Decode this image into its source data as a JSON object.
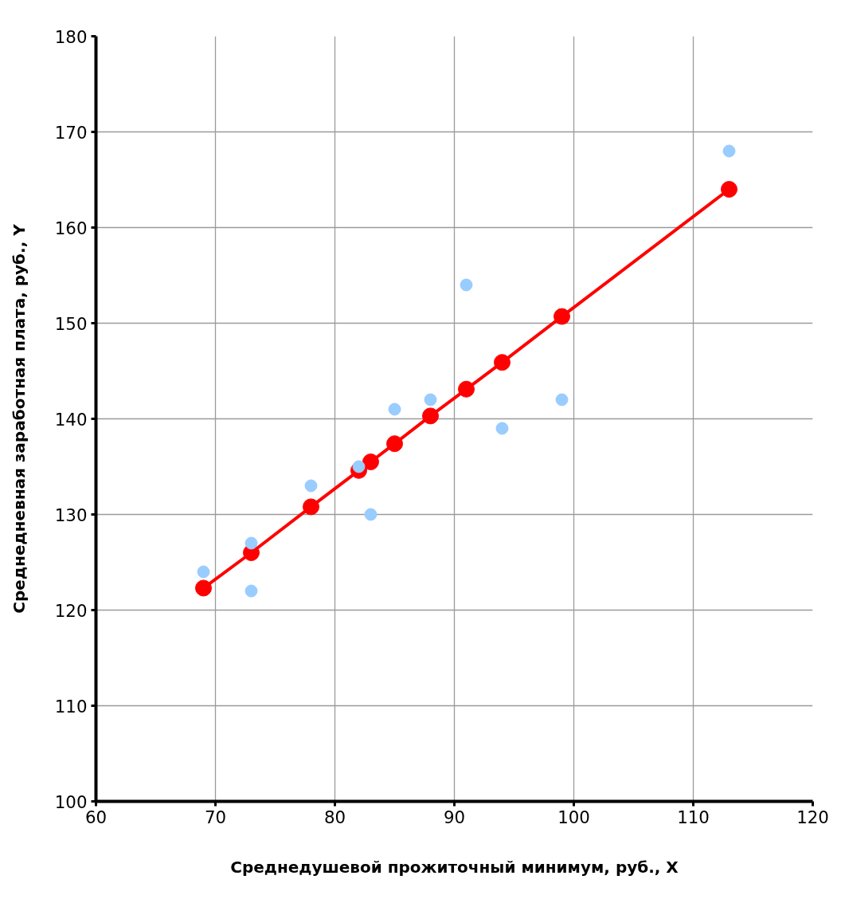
{
  "chart_data": {
    "type": "scatter",
    "xlabel": "Среднедушевой прожиточный минимум, руб., X",
    "ylabel": "Среднедневная заработная плата, руб., Y",
    "xlim": [
      60,
      120
    ],
    "ylim": [
      100,
      180
    ],
    "xticks": [
      60,
      70,
      80,
      90,
      100,
      110,
      120
    ],
    "yticks": [
      100,
      110,
      120,
      130,
      140,
      150,
      160,
      170,
      180
    ],
    "grid": true,
    "marker": "circle",
    "series": [
      {
        "color": "#99ccff",
        "x": [
          69,
          73,
          73,
          78,
          82,
          83,
          85,
          88,
          91,
          94,
          99,
          113
        ],
        "values": [
          124,
          127,
          122,
          133,
          135,
          130,
          141,
          142,
          154,
          139,
          142,
          168
        ]
      },
      {
        "type": "line",
        "color": "#ff0000",
        "x": [
          69,
          73,
          78,
          82,
          83,
          85,
          88,
          91,
          94,
          99,
          113
        ],
        "values": [
          122.3,
          126.0,
          130.8,
          134.6,
          135.5,
          137.4,
          140.3,
          143.1,
          145.9,
          150.7,
          164.0
        ]
      }
    ]
  }
}
